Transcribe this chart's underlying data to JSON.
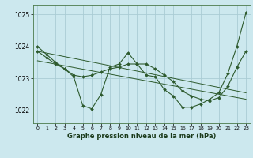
{
  "background_color": "#cce8ee",
  "grid_color": "#aaccd4",
  "line_color": "#2d5a2d",
  "title": "Graphe pression niveau de la mer (hPa)",
  "xlim": [
    -0.5,
    23.5
  ],
  "ylim": [
    1021.6,
    1025.3
  ],
  "yticks": [
    1022,
    1023,
    1024,
    1025
  ],
  "xticks": [
    0,
    1,
    2,
    3,
    4,
    5,
    6,
    7,
    8,
    9,
    10,
    11,
    12,
    13,
    14,
    15,
    16,
    17,
    18,
    19,
    20,
    21,
    22,
    23
  ],
  "series_main": {
    "x": [
      0,
      1,
      2,
      3,
      4,
      5,
      6,
      7,
      8,
      9,
      10,
      11,
      12,
      13,
      14,
      15,
      16,
      17,
      18,
      19,
      20,
      21,
      22,
      23
    ],
    "y": [
      1024.0,
      1023.75,
      1023.5,
      1023.3,
      1023.05,
      1022.15,
      1022.05,
      1022.5,
      1023.35,
      1023.45,
      1023.8,
      1023.45,
      1023.1,
      1023.05,
      1022.65,
      1022.45,
      1022.1,
      1022.1,
      1022.2,
      1022.35,
      1022.55,
      1023.15,
      1024.0,
      1025.05
    ]
  },
  "series_smooth": {
    "x": [
      0,
      1,
      2,
      3,
      4,
      5,
      6,
      7,
      8,
      9,
      10,
      11,
      12,
      13,
      14,
      15,
      16,
      17,
      18,
      19,
      20,
      21,
      22,
      23
    ],
    "y": [
      1023.85,
      1023.65,
      1023.45,
      1023.3,
      1023.1,
      1023.05,
      1023.1,
      1023.2,
      1023.3,
      1023.35,
      1023.45,
      1023.45,
      1023.45,
      1023.3,
      1023.1,
      1022.9,
      1022.6,
      1022.45,
      1022.35,
      1022.3,
      1022.4,
      1022.75,
      1023.35,
      1023.85
    ]
  },
  "line1": {
    "x": [
      0,
      23
    ],
    "y": [
      1023.85,
      1022.55
    ]
  },
  "line2": {
    "x": [
      0,
      23
    ],
    "y": [
      1023.55,
      1022.35
    ]
  }
}
